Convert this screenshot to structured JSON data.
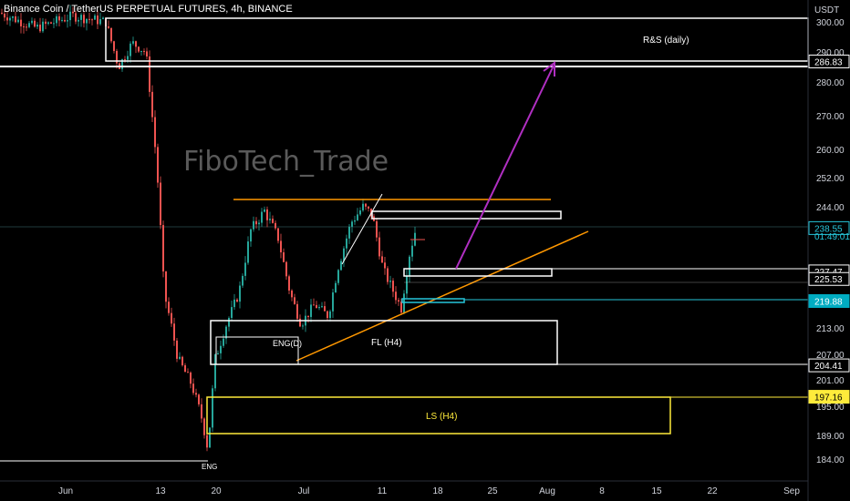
{
  "header": {
    "symbol_line": "Binance Coin / TetherUS PERPETUAL FUTURES, 4h, BINANCE"
  },
  "watermark": "FiboTech_Trade",
  "colors": {
    "background": "#000000",
    "up_candle": "#26a69a",
    "down_candle": "#ef5350",
    "current_price": "#26c6da",
    "resistance_line": "#ff9800",
    "projection_arrow": "#b02fc2",
    "liquidity_zone": "#ffeb3b",
    "box_outline": "#ffffff"
  },
  "chart_data": {
    "type": "candlestick",
    "title": "Binance Coin / TetherUS PERPETUAL FUTURES, 4h, BINANCE",
    "price_axis": {
      "unit": "USDT",
      "ticks": [
        300,
        290,
        280,
        270,
        260,
        252,
        244,
        213,
        207,
        201,
        195,
        189,
        184
      ],
      "tick_labels": [
        "300.00",
        "290.00",
        "280.00",
        "270.00",
        "260.00",
        "252.00",
        "244.00",
        "213.00",
        "207.00",
        "201.00",
        "195.00",
        "189.00",
        "184.00"
      ],
      "range": [
        180,
        305
      ],
      "scale": "log"
    },
    "time_axis": {
      "labels": [
        "Jun",
        "13",
        "20",
        "Jul",
        "11",
        "18",
        "25",
        "Aug",
        "8",
        "15",
        "22",
        "Sep"
      ],
      "dates": [
        "2021-06-01",
        "2021-06-13",
        "2021-06-20",
        "2021-07-01",
        "2021-07-11",
        "2021-07-18",
        "2021-07-25",
        "2021-08-01",
        "2021-08-08",
        "2021-08-15",
        "2021-08-22",
        "2021-09-01"
      ]
    },
    "price_markers": [
      {
        "value": 286.83,
        "label": "286.83",
        "style": "white"
      },
      {
        "value": 238.55,
        "label": "238.55",
        "style": "current"
      },
      {
        "value": 227.47,
        "label": "227.47",
        "style": "white"
      },
      {
        "value": 225.53,
        "label": "225.53",
        "style": "white"
      },
      {
        "value": 219.88,
        "label": "219.88",
        "style": "cyan"
      },
      {
        "value": 204.41,
        "label": "204.41",
        "style": "white"
      },
      {
        "value": 197.16,
        "label": "197.16",
        "style": "yellow"
      }
    ],
    "countdown": "01:49:01",
    "annotations": [
      {
        "text": "R&S (daily)"
      },
      {
        "text": "ENG(D)"
      },
      {
        "text": "FL (H4)"
      },
      {
        "text": "LS (H4)"
      },
      {
        "text": "ENG"
      }
    ],
    "last_close": 238.55
  }
}
